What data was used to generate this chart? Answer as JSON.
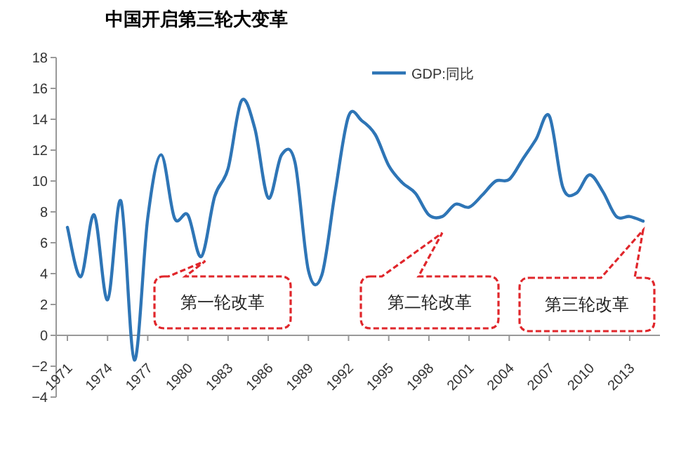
{
  "chart_data": {
    "type": "line",
    "title": "中国开启第三轮大变革",
    "categories": [
      "1971",
      null,
      null,
      "1974",
      null,
      null,
      "1977",
      null,
      null,
      "1980",
      null,
      null,
      "1983",
      null,
      null,
      "1986",
      null,
      null,
      "1989",
      null,
      null,
      "1992",
      null,
      null,
      "1995",
      null,
      null,
      "1998",
      null,
      null,
      "2001",
      null,
      null,
      "2004",
      null,
      null,
      "2007",
      null,
      null,
      "2010",
      null,
      null,
      "2013",
      null
    ],
    "series": [
      {
        "name": "GDP:同比",
        "color": "#2e75b6",
        "values": [
          7.0,
          3.8,
          7.8,
          2.3,
          8.7,
          -1.6,
          7.6,
          11.7,
          7.6,
          7.8,
          5.1,
          9.0,
          10.8,
          15.2,
          13.4,
          8.9,
          11.7,
          11.2,
          4.2,
          3.9,
          9.3,
          14.2,
          13.9,
          13.0,
          11.0,
          9.9,
          9.2,
          7.8,
          7.7,
          8.5,
          8.3,
          9.1,
          10.0,
          10.1,
          11.4,
          12.7,
          14.2,
          9.6,
          9.2,
          10.4,
          9.3,
          7.7,
          7.7,
          7.4
        ]
      }
    ],
    "ylim": [
      -4,
      18
    ],
    "yticks": [
      -4,
      -2,
      0,
      2,
      4,
      6,
      8,
      10,
      12,
      14,
      16,
      18
    ],
    "legend": "top right",
    "grid": false,
    "marker": "none",
    "line_style": "solid",
    "annotations": [
      "第一轮改革",
      "第二轮改革",
      "第三轮改革"
    ]
  }
}
